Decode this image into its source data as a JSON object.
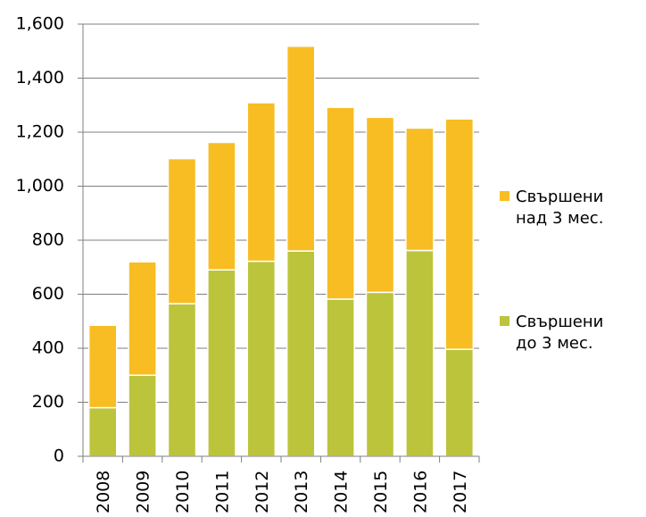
{
  "chart_data": {
    "type": "bar",
    "stacked": true,
    "categories": [
      "2008",
      "2009",
      "2010",
      "2011",
      "2012",
      "2013",
      "2014",
      "2015",
      "2016",
      "2017"
    ],
    "series": [
      {
        "name_lines": [
          "Свършени",
          "до 3 мес."
        ],
        "color": "#bcc43c",
        "values": [
          180,
          300,
          565,
          690,
          722,
          760,
          582,
          607,
          762,
          396
        ]
      },
      {
        "name_lines": [
          "Свършени",
          "над 3 мес."
        ],
        "color": "#f7bd22",
        "values": [
          305,
          420,
          537,
          472,
          587,
          758,
          710,
          648,
          453,
          853
        ]
      }
    ],
    "y_ticks": [
      "0",
      "200",
      "400",
      "600",
      "800",
      "1,000",
      "1,200",
      "1,400",
      "1,600"
    ],
    "ylim": [
      0,
      1600
    ],
    "grid": true,
    "legend_position": "right"
  }
}
